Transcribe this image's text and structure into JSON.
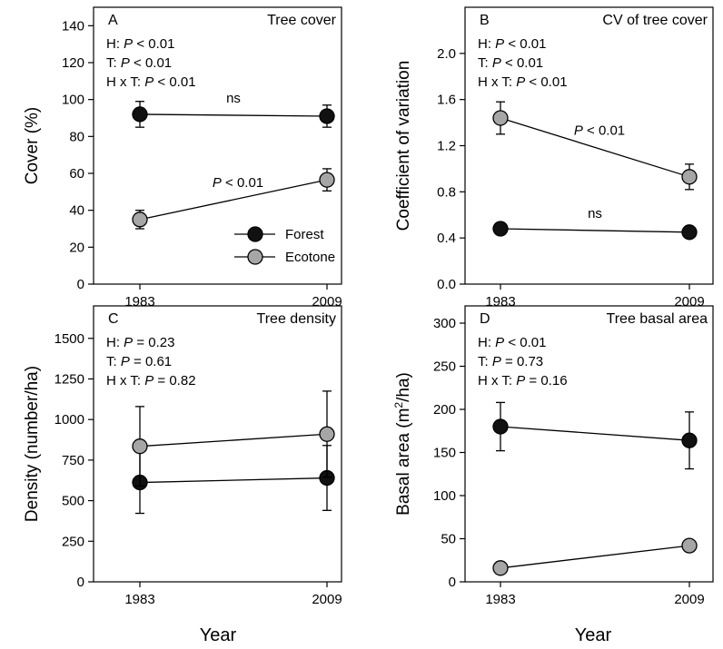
{
  "figure": {
    "xlabel": "Year",
    "legend": [
      {
        "name": "Forest",
        "color": "#111111"
      },
      {
        "name": "Ecotone",
        "color": "#a6a6a6"
      }
    ]
  },
  "chart_data": [
    {
      "type": "line",
      "panel": "A",
      "title": "Tree cover",
      "ylabel": "Cover (%)",
      "ylim": [
        0,
        150
      ],
      "yticks": [
        0,
        20,
        40,
        60,
        80,
        100,
        120,
        140
      ],
      "yticklabels": [
        "0",
        "20",
        "40",
        "60",
        "80",
        "100",
        "120",
        "140"
      ],
      "categories": [
        "1983",
        "2009"
      ],
      "stats": [
        {
          "prefix": "H:",
          "p": "P",
          "rel": "< 0.01"
        },
        {
          "prefix": "T:",
          "p": "P",
          "rel": "< 0.01"
        },
        {
          "prefix": "H x T:",
          "p": "P",
          "rel": "< 0.01"
        }
      ],
      "series": [
        {
          "name": "Forest",
          "values": [
            92,
            91
          ],
          "err": [
            7,
            6
          ],
          "color": "#111111"
        },
        {
          "name": "Ecotone",
          "values": [
            35,
            56.5
          ],
          "err": [
            5,
            6
          ],
          "color": "#a6a6a6"
        }
      ],
      "annotations": [
        {
          "series": "Forest",
          "text": "ns",
          "italic": false
        },
        {
          "series": "Ecotone",
          "text": "P < 0.01",
          "italic": true
        }
      ],
      "legend": true
    },
    {
      "type": "line",
      "panel": "B",
      "title": "CV of tree cover",
      "ylabel": "Coefficient of variation",
      "ylim": [
        0,
        2.4
      ],
      "yticks": [
        0,
        0.4,
        0.8,
        1.2,
        1.6,
        2.0
      ],
      "yticklabels": [
        "0.0",
        "0.4",
        "0.8",
        "1.2",
        "1.6",
        "2.0"
      ],
      "categories": [
        "1983",
        "2009"
      ],
      "stats": [
        {
          "prefix": "H:",
          "p": "P",
          "rel": "< 0.01"
        },
        {
          "prefix": "T:",
          "p": "P",
          "rel": "< 0.01"
        },
        {
          "prefix": "H x T:",
          "p": "P",
          "rel": "< 0.01"
        }
      ],
      "series": [
        {
          "name": "Forest",
          "values": [
            0.48,
            0.45
          ],
          "err": [
            0.02,
            0.02
          ],
          "color": "#111111"
        },
        {
          "name": "Ecotone",
          "values": [
            1.44,
            0.93
          ],
          "err": [
            0.14,
            0.11
          ],
          "color": "#a6a6a6"
        }
      ],
      "annotations": [
        {
          "series": "Forest",
          "text": "ns",
          "italic": false
        },
        {
          "series": "Ecotone",
          "text": "P < 0.01",
          "italic": true
        }
      ],
      "legend": false
    },
    {
      "type": "line",
      "panel": "C",
      "title": "Tree density",
      "ylabel": "Density (number/ha)",
      "ylim": [
        0,
        1700
      ],
      "yticks": [
        0,
        250,
        500,
        750,
        1000,
        1250,
        1500
      ],
      "yticklabels": [
        "0",
        "250",
        "500",
        "750",
        "1000",
        "1250",
        "1500"
      ],
      "categories": [
        "1983",
        "2009"
      ],
      "stats": [
        {
          "prefix": "H:",
          "p": "P",
          "rel": "= 0.23"
        },
        {
          "prefix": "T:",
          "p": "P",
          "rel": "= 0.61"
        },
        {
          "prefix": "H x T:",
          "p": "P",
          "rel": "= 0.82"
        }
      ],
      "series": [
        {
          "name": "Forest",
          "values": [
            612,
            640
          ],
          "err": [
            190,
            200
          ],
          "color": "#111111"
        },
        {
          "name": "Ecotone",
          "values": [
            835,
            910
          ],
          "err": [
            245,
            265
          ],
          "color": "#a6a6a6"
        }
      ],
      "annotations": [],
      "legend": false
    },
    {
      "type": "line",
      "panel": "D",
      "title": "Tree basal area",
      "ylabel": "Basal area (m2/ha)",
      "ylim": [
        0,
        320
      ],
      "yticks": [
        0,
        50,
        100,
        150,
        200,
        250,
        300
      ],
      "yticklabels": [
        "0",
        "50",
        "100",
        "150",
        "200",
        "250",
        "300"
      ],
      "categories": [
        "1983",
        "2009"
      ],
      "stats": [
        {
          "prefix": "H:",
          "p": "P",
          "rel": "< 0.01"
        },
        {
          "prefix": "T:",
          "p": "P",
          "rel": "= 0.73"
        },
        {
          "prefix": "H x T:",
          "p": "P",
          "rel": "= 0.16"
        }
      ],
      "series": [
        {
          "name": "Forest",
          "values": [
            180,
            164
          ],
          "err": [
            28,
            33
          ],
          "color": "#111111"
        },
        {
          "name": "Ecotone",
          "values": [
            16,
            42
          ],
          "err": [
            2,
            4
          ],
          "color": "#a6a6a6"
        }
      ],
      "annotations": [],
      "legend": false
    }
  ]
}
